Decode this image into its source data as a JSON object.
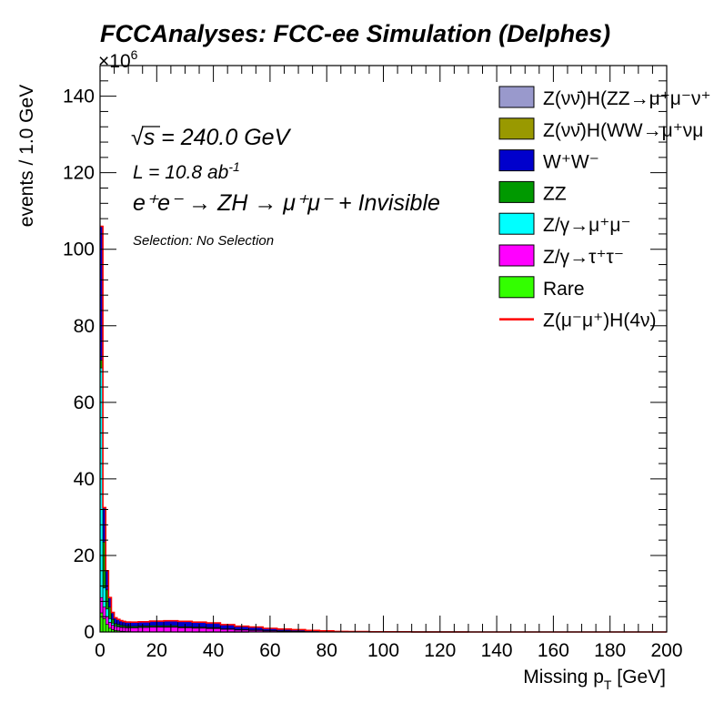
{
  "chart_data": {
    "type": "bar",
    "title": "FCCAnalyses: FCC-ee Simulation (Delphes)",
    "xlabel_main": "Missing p",
    "xlabel_sub": "T",
    "xlabel_unit": " [GeV]",
    "ylabel": "events / 1.0 GeV",
    "y_multiplier_base": "×10",
    "y_multiplier_exp": "6",
    "xlim": [
      0,
      200
    ],
    "ylim": [
      0,
      148
    ],
    "x_ticks": [
      "0",
      "20",
      "40",
      "60",
      "80",
      "100",
      "120",
      "140",
      "160",
      "180",
      "200"
    ],
    "y_ticks": [
      "0",
      "20",
      "40",
      "60",
      "80",
      "100",
      "120",
      "140"
    ],
    "annotations": {
      "sqrts_symbol": "√",
      "sqrts_text": "s = 240.0 GeV",
      "lumi_main": "L = 10.8 ab",
      "lumi_sup": "-1",
      "process": "e⁺e⁻ → ZH → μ⁺μ⁻ + Invisible",
      "selection": "Selection: No Selection"
    },
    "legend_position": "top-right",
    "legend": [
      {
        "label": "Z(νν̄)H(ZZ→μ⁺μ⁻ν⁺",
        "color": "#9999cc",
        "style": "box"
      },
      {
        "label": "Z(νν̄)H(WW→μ⁺νμ",
        "color": "#999900",
        "style": "box"
      },
      {
        "label": "W⁺W⁻",
        "color": "#0000cc",
        "style": "box"
      },
      {
        "label": "ZZ",
        "color": "#009900",
        "style": "box"
      },
      {
        "label": "Z/γ→μ⁺μ⁻",
        "color": "#00ffff",
        "style": "box"
      },
      {
        "label": "Z/γ→τ⁺τ⁻",
        "color": "#ff00ff",
        "style": "box"
      },
      {
        "label": "Rare",
        "color": "#33ff00",
        "style": "box"
      },
      {
        "label": "Z(μ⁻μ⁺)H(4ν)",
        "color": "#ff0000",
        "style": "line"
      }
    ],
    "x": [
      0.5,
      1.5,
      2.5,
      3.5,
      4.5,
      5.5,
      6.5,
      7.5,
      8.5,
      9.5,
      12,
      15,
      20,
      25,
      30,
      35,
      40,
      45,
      50,
      55,
      60,
      65,
      70,
      75,
      80,
      85,
      90,
      100,
      120,
      140,
      160,
      180,
      199
    ],
    "series": [
      {
        "name": "Rare",
        "color": "#33ff00",
        "values": [
          5,
          3.5,
          2,
          1,
          0.6,
          0.4,
          0.3,
          0.2,
          0.15,
          0.1,
          0.08,
          0.06,
          0.05,
          0.04,
          0.03,
          0.02,
          0.02,
          0.01,
          0.01,
          0,
          0,
          0,
          0,
          0,
          0,
          0,
          0,
          0,
          0,
          0,
          0,
          0,
          0
        ]
      },
      {
        "name": "Z/γ→τ⁺τ⁻",
        "color": "#ff00ff",
        "values": [
          4,
          3,
          2,
          1.5,
          1.2,
          1.0,
          1.0,
          1.0,
          1.0,
          1.0,
          1.0,
          1.1,
          1.2,
          1.2,
          1.1,
          1.0,
          0.9,
          0.7,
          0.5,
          0.4,
          0.3,
          0.2,
          0.2,
          0.1,
          0.1,
          0,
          0,
          0,
          0,
          0,
          0,
          0,
          0
        ]
      },
      {
        "name": "Z/γ→μ⁺μ⁻",
        "color": "#00ffff",
        "values": [
          60,
          5,
          2,
          1,
          0.5,
          0.3,
          0.2,
          0.15,
          0.1,
          0.1,
          0.1,
          0.1,
          0.1,
          0.1,
          0.05,
          0.05,
          0.05,
          0,
          0,
          0,
          0,
          0,
          0,
          0,
          0,
          0,
          0,
          0,
          0,
          0,
          0,
          0,
          0
        ]
      },
      {
        "name": "ZZ",
        "color": "#009900",
        "values": [
          2,
          12,
          5,
          3,
          1,
          0.5,
          0.5,
          0.4,
          0.4,
          0.3,
          0.3,
          0.3,
          0.3,
          0.3,
          0.2,
          0.2,
          0.2,
          0.1,
          0.1,
          0.1,
          0.05,
          0.05,
          0,
          0,
          0,
          0,
          0,
          0,
          0,
          0,
          0,
          0,
          0
        ]
      },
      {
        "name": "W⁺W⁻",
        "color": "#0000cc",
        "values": [
          35,
          9,
          5,
          2.5,
          1.8,
          1.5,
          1.3,
          1.2,
          1.1,
          1.1,
          1.1,
          1.1,
          1.2,
          1.3,
          1.4,
          1.3,
          1.2,
          1.1,
          0.9,
          0.8,
          0.6,
          0.5,
          0.4,
          0.3,
          0.2,
          0.15,
          0.1,
          0.05,
          0.02,
          0,
          0,
          0,
          0
        ]
      }
    ]
  }
}
